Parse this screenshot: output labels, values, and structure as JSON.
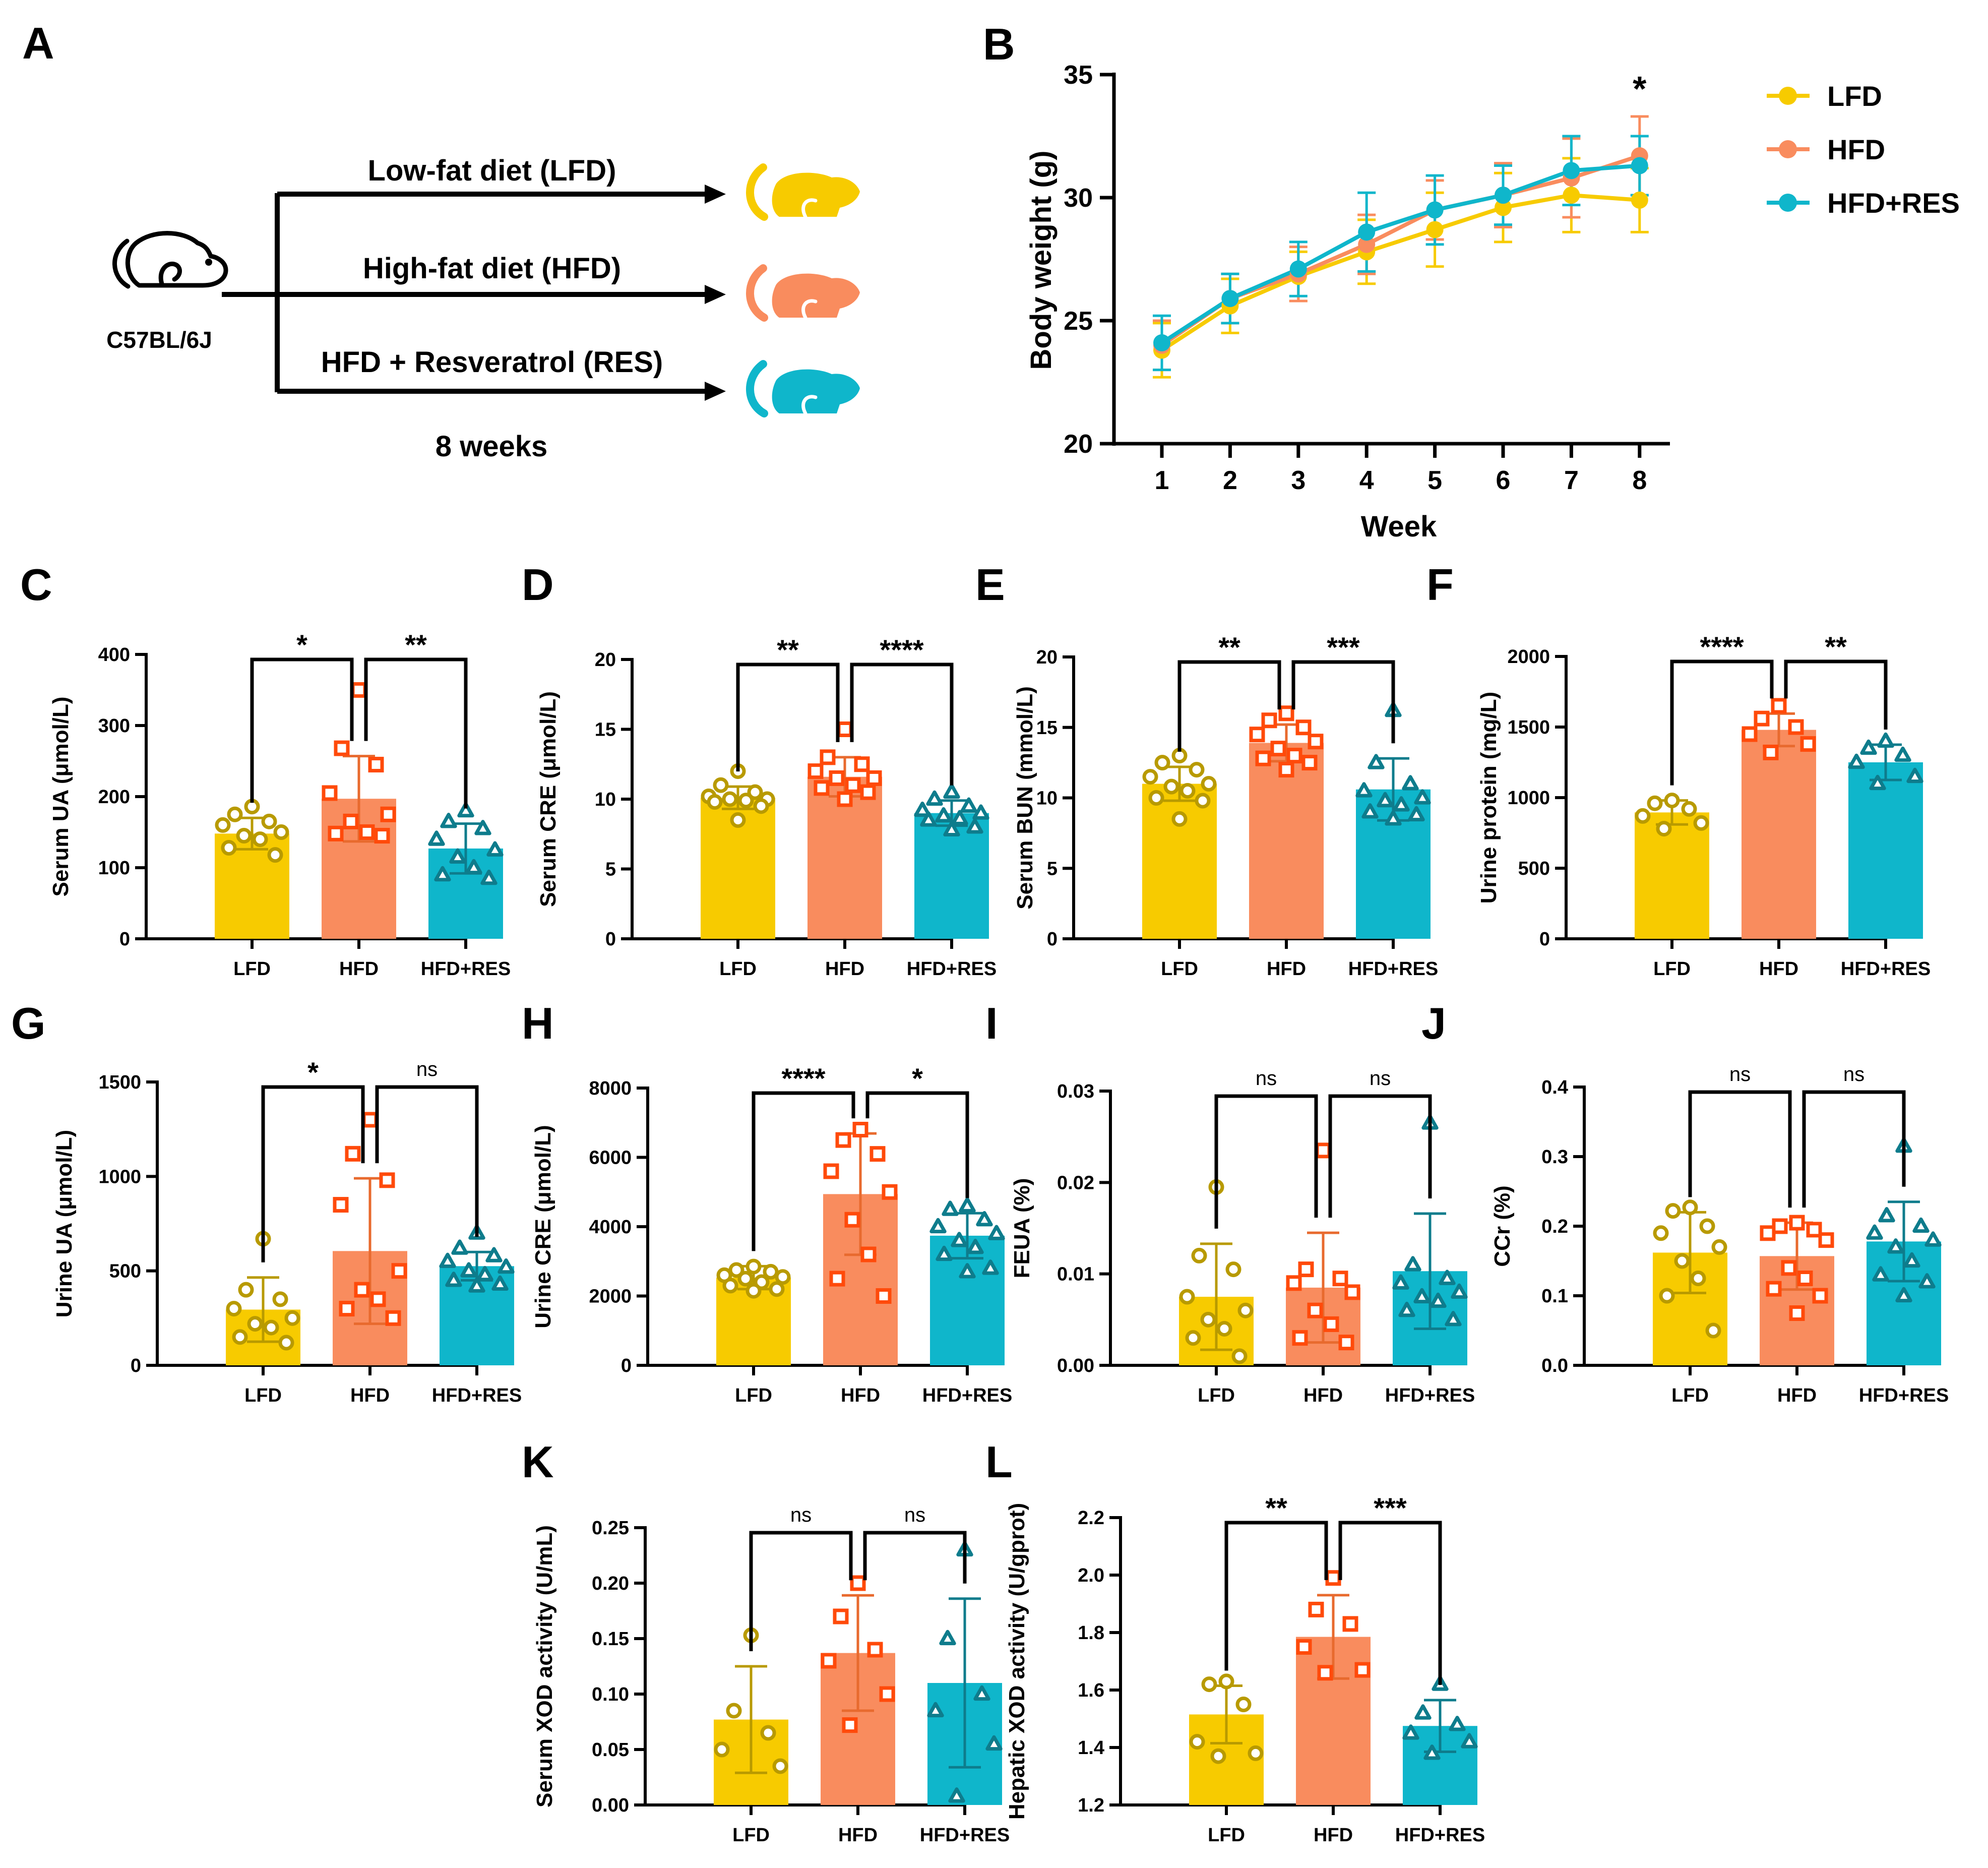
{
  "colors": {
    "LFD": "#F7CB00",
    "HFD": "#F98C5E",
    "HFDRES": "#0FB6CB",
    "LFD_pt": "#B89A00",
    "HFD_pt": "#FF4A0A",
    "HFDRES_pt": "#0E7C8C",
    "HFD_err": "#E86A2E"
  },
  "panel_a": {
    "letter": "A",
    "mouse_label": "C57BL/6J",
    "arms": [
      "Low-fat diet (LFD)",
      "High-fat diet (HFD)",
      "HFD + Resveratrol (RES)"
    ],
    "duration": "8 weeks"
  },
  "chart_data": [
    {
      "id": "B",
      "letter": "B",
      "type": "line",
      "xlabel": "Week",
      "ylabel": "Body weight (g)",
      "x": [
        1,
        2,
        3,
        4,
        5,
        6,
        7,
        8
      ],
      "xticks": [
        "1",
        "2",
        "3",
        "4",
        "5",
        "6",
        "7",
        "8"
      ],
      "ylim": [
        20,
        35
      ],
      "yticks": [
        20,
        25,
        30,
        35
      ],
      "annotation": {
        "x": 8,
        "text": "*"
      },
      "legend_position": "top-right",
      "series": [
        {
          "name": "LFD",
          "values": [
            23.8,
            25.6,
            26.8,
            27.8,
            28.7,
            29.6,
            30.1,
            29.9
          ],
          "err": [
            1.1,
            1.1,
            1.0,
            1.3,
            1.5,
            1.4,
            1.5,
            1.3
          ]
        },
        {
          "name": "HFD",
          "values": [
            24.0,
            25.9,
            26.9,
            28.1,
            29.5,
            30.1,
            30.8,
            31.7
          ],
          "err": [
            1.0,
            1.0,
            1.1,
            1.2,
            1.2,
            1.3,
            1.6,
            1.6
          ]
        },
        {
          "name": "HFD+RES",
          "values": [
            24.1,
            25.9,
            27.1,
            28.6,
            29.5,
            30.1,
            31.1,
            31.3
          ],
          "err": [
            1.1,
            1.0,
            1.1,
            1.6,
            1.4,
            1.2,
            1.4,
            1.2
          ]
        }
      ]
    },
    {
      "id": "C",
      "letter": "C",
      "type": "bar",
      "ylabel": "Serum UA (μmol/L)",
      "categories": [
        "LFD",
        "HFD",
        "HFD+RES"
      ],
      "ylim": [
        0,
        400
      ],
      "yticks": [
        0,
        100,
        200,
        300,
        400
      ],
      "values": [
        148,
        197,
        127
      ],
      "sd": [
        22,
        60,
        35
      ],
      "points": [
        [
          186,
          175,
          165,
          160,
          150,
          145,
          140,
          128,
          118
        ],
        [
          350,
          268,
          245,
          205,
          175,
          165,
          150,
          148,
          145
        ],
        [
          180,
          165,
          155,
          140,
          125,
          115,
          100,
          90,
          85
        ]
      ],
      "sig": [
        "*",
        "**"
      ]
    },
    {
      "id": "D",
      "letter": "D",
      "type": "bar",
      "ylabel": "Serum CRE (μmol/L)",
      "categories": [
        "LFD",
        "HFD",
        "HFD+RES"
      ],
      "ylim": [
        0,
        20
      ],
      "yticks": [
        0,
        5,
        10,
        15,
        20
      ],
      "values": [
        10.1,
        11.6,
        9.0
      ],
      "sd": [
        0.8,
        1.4,
        0.9
      ],
      "points": [
        [
          12.0,
          11.0,
          10.5,
          10.2,
          10.0,
          10.0,
          9.9,
          9.8,
          9.5,
          8.5
        ],
        [
          15.0,
          13.0,
          12.5,
          12.0,
          11.5,
          11.5,
          11.0,
          10.8,
          10.5,
          10.0
        ],
        [
          10.5,
          10.0,
          9.5,
          9.2,
          9.0,
          8.8,
          8.6,
          8.5,
          8.0,
          7.8
        ]
      ],
      "sig": [
        "**",
        "****"
      ]
    },
    {
      "id": "E",
      "letter": "E",
      "type": "bar",
      "ylabel": "Serum BUN (mmol/L)",
      "categories": [
        "LFD",
        "HFD",
        "HFD+RES"
      ],
      "ylim": [
        0,
        20
      ],
      "yticks": [
        0,
        5,
        10,
        15,
        20
      ],
      "values": [
        11.0,
        13.9,
        10.6
      ],
      "sd": [
        1.2,
        1.3,
        2.2
      ],
      "points": [
        [
          13.0,
          12.5,
          12.0,
          11.5,
          11.0,
          10.8,
          10.5,
          10.0,
          9.8,
          8.5
        ],
        [
          16.0,
          15.5,
          15.0,
          14.5,
          14.0,
          13.5,
          13.0,
          12.8,
          12.5,
          12.0
        ],
        [
          16.2,
          12.5,
          11.0,
          10.5,
          10.0,
          9.8,
          9.5,
          9.0,
          8.8,
          8.5
        ]
      ],
      "sig": [
        "**",
        "***"
      ]
    },
    {
      "id": "F",
      "letter": "F",
      "type": "bar",
      "ylabel": "Urine protein (mg/L)",
      "categories": [
        "LFD",
        "HFD",
        "HFD+RES"
      ],
      "ylim": [
        0,
        2000
      ],
      "yticks": [
        0,
        500,
        1000,
        1500,
        2000
      ],
      "values": [
        895,
        1480,
        1250
      ],
      "sd": [
        85,
        115,
        125
      ],
      "points": [
        [
          980,
          960,
          920,
          870,
          820,
          780
        ],
        [
          1650,
          1560,
          1500,
          1450,
          1380,
          1320
        ],
        [
          1400,
          1350,
          1300,
          1250,
          1150,
          1100
        ]
      ],
      "sig": [
        "****",
        "**"
      ]
    },
    {
      "id": "G",
      "letter": "G",
      "type": "bar",
      "ylabel": "Urine UA (μmol/L)",
      "categories": [
        "LFD",
        "HFD",
        "HFD+RES"
      ],
      "ylim": [
        0,
        1500
      ],
      "yticks": [
        0,
        500,
        1000,
        1500
      ],
      "values": [
        295,
        605,
        525
      ],
      "sd": [
        170,
        385,
        75
      ],
      "points": [
        [
          670,
          400,
          350,
          300,
          250,
          220,
          200,
          150,
          120
        ],
        [
          1300,
          1120,
          980,
          850,
          500,
          400,
          350,
          300,
          250
        ],
        [
          700,
          620,
          580,
          550,
          520,
          500,
          480,
          450,
          430,
          420
        ]
      ],
      "sig": [
        "*",
        "ns"
      ]
    },
    {
      "id": "H",
      "letter": "H",
      "type": "bar",
      "ylabel": "Urine CRE (μmol/L)",
      "categories": [
        "LFD",
        "HFD",
        "HFD+RES"
      ],
      "ylim": [
        0,
        8000
      ],
      "yticks": [
        0,
        2000,
        4000,
        6000,
        8000
      ],
      "values": [
        2530,
        4940,
        3740
      ],
      "sd": [
        330,
        1750,
        650
      ],
      "points": [
        [
          2850,
          2750,
          2700,
          2600,
          2550,
          2500,
          2400,
          2300,
          2200,
          2150
        ],
        [
          6800,
          6500,
          6100,
          5600,
          5000,
          4200,
          3200,
          2500,
          2000
        ],
        [
          4600,
          4500,
          4200,
          4000,
          3800,
          3600,
          3400,
          3200,
          2800,
          2700
        ]
      ],
      "sig": [
        "****",
        "*"
      ]
    },
    {
      "id": "I",
      "letter": "I",
      "type": "bar",
      "ylabel": "FEUA (%)",
      "categories": [
        "LFD",
        "HFD",
        "HFD+RES"
      ],
      "ylim": [
        0,
        0.03
      ],
      "yticks": [
        0.0,
        0.01,
        0.02,
        0.03
      ],
      "ytick_labels": [
        "0.00",
        "0.01",
        "0.02",
        "0.03"
      ],
      "values": [
        0.0075,
        0.0085,
        0.0103
      ],
      "sd": [
        0.0058,
        0.006,
        0.0063
      ],
      "points": [
        [
          0.0195,
          0.012,
          0.0105,
          0.0075,
          0.006,
          0.005,
          0.004,
          0.003,
          0.001
        ],
        [
          0.0235,
          0.0105,
          0.0095,
          0.009,
          0.008,
          0.006,
          0.0045,
          0.003,
          0.0025
        ],
        [
          0.0265,
          0.011,
          0.0095,
          0.009,
          0.008,
          0.0075,
          0.007,
          0.006,
          0.005
        ]
      ],
      "sig": [
        "ns",
        "ns"
      ]
    },
    {
      "id": "J",
      "letter": "J",
      "type": "bar",
      "ylabel": "CCr (%)",
      "categories": [
        "LFD",
        "HFD",
        "HFD+RES"
      ],
      "ylim": [
        0,
        0.4
      ],
      "yticks": [
        0.0,
        0.1,
        0.2,
        0.3,
        0.4
      ],
      "ytick_labels": [
        "0.0",
        "0.1",
        "0.2",
        "0.3",
        "0.4"
      ],
      "values": [
        0.162,
        0.157,
        0.178
      ],
      "sd": [
        0.058,
        0.048,
        0.057
      ],
      "points": [
        [
          0.227,
          0.222,
          0.2,
          0.19,
          0.17,
          0.15,
          0.125,
          0.1,
          0.05
        ],
        [
          0.205,
          0.2,
          0.195,
          0.19,
          0.18,
          0.14,
          0.125,
          0.11,
          0.1,
          0.075
        ],
        [
          0.315,
          0.215,
          0.2,
          0.19,
          0.18,
          0.17,
          0.15,
          0.13,
          0.12,
          0.1
        ]
      ],
      "sig": [
        "ns",
        "ns"
      ]
    },
    {
      "id": "K",
      "letter": "K",
      "type": "bar",
      "ylabel": "Serum XOD activity (U/mL)",
      "categories": [
        "LFD",
        "HFD",
        "HFD+RES"
      ],
      "ylim": [
        0,
        0.25
      ],
      "yticks": [
        0,
        0.05,
        0.1,
        0.15,
        0.2,
        0.25
      ],
      "ytick_labels": [
        "0.00",
        "0.05",
        "0.10",
        "0.15",
        "0.20",
        "0.25"
      ],
      "values": [
        0.077,
        0.137,
        0.11
      ],
      "sd": [
        0.048,
        0.052,
        0.076
      ],
      "points": [
        [
          0.153,
          0.085,
          0.065,
          0.05,
          0.035
        ],
        [
          0.2,
          0.17,
          0.14,
          0.13,
          0.1,
          0.072
        ],
        [
          0.23,
          0.15,
          0.1,
          0.085,
          0.055,
          0.008
        ]
      ],
      "sig": [
        "ns",
        "ns"
      ]
    },
    {
      "id": "L",
      "letter": "L",
      "type": "bar",
      "ylabel": "Hepatic XOD activity (U/gprot)",
      "categories": [
        "LFD",
        "HFD",
        "HFD+RES"
      ],
      "ylim": [
        1.2,
        2.2
      ],
      "yticks": [
        1.2,
        1.4,
        1.6,
        1.8,
        2.0,
        2.2
      ],
      "ytick_labels": [
        "1.2",
        "1.4",
        "1.6",
        "1.8",
        "2.0",
        "2.2"
      ],
      "values": [
        1.515,
        1.785,
        1.475
      ],
      "sd": [
        0.1,
        0.145,
        0.09
      ],
      "points": [
        [
          1.63,
          1.62,
          1.55,
          1.42,
          1.38,
          1.37
        ],
        [
          1.99,
          1.88,
          1.83,
          1.75,
          1.67,
          1.66
        ],
        [
          1.62,
          1.52,
          1.48,
          1.45,
          1.42,
          1.38
        ]
      ],
      "sig": [
        "**",
        "***"
      ]
    }
  ]
}
